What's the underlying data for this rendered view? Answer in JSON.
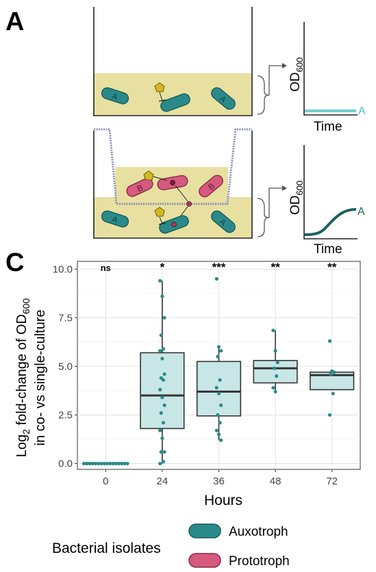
{
  "panels": {
    "a_label": "A",
    "c_label": "C"
  },
  "schematic": {
    "cell_a": "A",
    "cell_b": "B",
    "od_axis": "OD",
    "od_sub": "600",
    "time_axis": "Time",
    "curve_label_flat": "A",
    "curve_label_growth": "A"
  },
  "colors": {
    "auxotroph": "#2a8a8a",
    "auxotroph_dark": "#1b5a5a",
    "prototroph": "#d55a7e",
    "prototroph_dark": "#8a2a4a",
    "medium": "#e8e0a0",
    "flat_curve": "#6fd0d0",
    "growth_curve": "#1f6060",
    "box_fill": "#c8e6e6",
    "molecule": "#d4b820",
    "membrane": "#8a90b8"
  },
  "chart_data": {
    "type": "box",
    "xlabel": "Hours",
    "ylabel_line1_prefix": "Log",
    "ylabel_line1_sub": "2",
    "ylabel_line1_mid": " fold-change of OD",
    "ylabel_line1_sub2": "600",
    "ylabel_line2": "in co- vs single-culture",
    "categories": [
      "0",
      "24",
      "36",
      "48",
      "72"
    ],
    "yticks": [
      "0.0",
      "2.5",
      "5.0",
      "7.5",
      "10.0"
    ],
    "ylim": [
      -0.3,
      10.4
    ],
    "significance": [
      "ns",
      "*",
      "***",
      "**",
      "**"
    ],
    "boxes": [
      {
        "q1": 0,
        "median": 0,
        "q3": 0,
        "lo": 0,
        "hi": 0
      },
      {
        "q1": 1.8,
        "median": 3.5,
        "q3": 5.7,
        "lo": 0.0,
        "hi": 9.4
      },
      {
        "q1": 2.45,
        "median": 3.7,
        "q3": 5.25,
        "lo": 1.2,
        "hi": 6.0
      },
      {
        "q1": 4.15,
        "median": 4.9,
        "q3": 5.3,
        "lo": 3.7,
        "hi": 6.85
      },
      {
        "q1": 3.8,
        "median": 4.55,
        "q3": 4.7,
        "lo": 3.8,
        "hi": 4.75
      }
    ],
    "points": [
      [
        0,
        0,
        0,
        0,
        0,
        0,
        0,
        0,
        0,
        0,
        0,
        0,
        0,
        0,
        0,
        0
      ],
      [
        9.4,
        8.6,
        7.5,
        6.6,
        5.9,
        5.8,
        5.4,
        4.6,
        4.4,
        4.3,
        3.8,
        3.4,
        3.0,
        2.6,
        2.1,
        1.7,
        1.3,
        0.6,
        0.6,
        0.1,
        0.0
      ],
      [
        9.5,
        6.0,
        5.8,
        5.5,
        4.3,
        3.9,
        3.6,
        3.0,
        2.5,
        2.1,
        1.7,
        1.5,
        1.2
      ],
      [
        6.85,
        5.8,
        5.2,
        4.9,
        4.5,
        3.9,
        3.7
      ],
      [
        6.3,
        4.75,
        4.7,
        4.6,
        3.6,
        2.5
      ]
    ],
    "series": [
      {
        "name": "Auxotroph"
      }
    ],
    "grid": true
  },
  "legend": {
    "title": "Bacterial isolates",
    "items": [
      "Auxotroph",
      "Prototroph"
    ]
  }
}
